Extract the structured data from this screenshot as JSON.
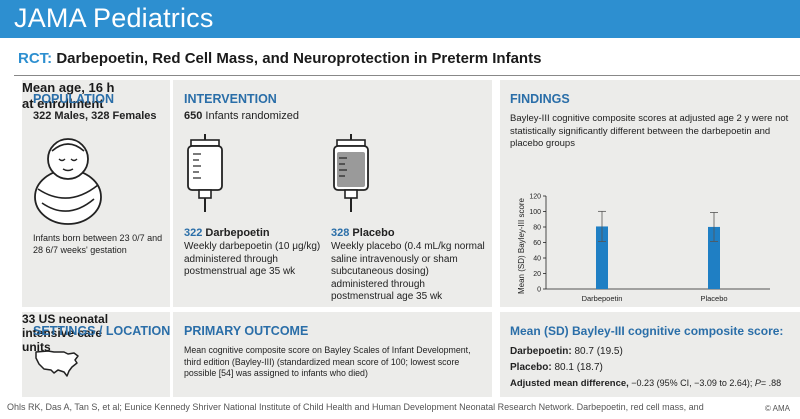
{
  "header": {
    "title": "JAMA Pediatrics"
  },
  "subtitle": {
    "prefix": "RCT:",
    "text": "Darbepoetin, Red Cell Mass, and Neuroprotection in Preterm Infants"
  },
  "population": {
    "title": "POPULATION",
    "summary": "322 Males, 328 Females",
    "detail": "Infants born between 23 0/7 and 28 6/7 weeks' gestation",
    "age_line1": "Mean age, 16 h",
    "age_line2": "at enrollment"
  },
  "intervention": {
    "title": "INTERVENTION",
    "count": "650",
    "count_label": "Infants randomized",
    "arm1": {
      "n": "322",
      "name": "Darbepoetin",
      "desc": "Weekly darbepoetin (10 μg/kg) administered through postmenstrual age 35 wk"
    },
    "arm2": {
      "n": "328",
      "name": "Placebo",
      "desc": "Weekly placebo (0.4 mL/kg normal saline intravenously or sham subcutaneous dosing) administered through postmenstrual age 35 wk"
    }
  },
  "findings": {
    "title": "FINDINGS",
    "text": "Bayley-III cognitive composite scores at adjusted age 2 y were not statistically significantly different between the darbepoetin and placebo groups"
  },
  "settings": {
    "title": "SETTINGS / LOCATIONS",
    "line1": "33 US neonatal",
    "line2": "intensive care",
    "line3": "units"
  },
  "primary_outcome": {
    "title": "PRIMARY OUTCOME",
    "text": "Mean cognitive composite score on Bayley Scales of Infant Development, third edition (Bayley-III) (standardized mean score of 100; lowest score possible [54] was assigned to infants who died)"
  },
  "results": {
    "title": "Mean (SD) Bayley-III cognitive composite score:",
    "darb_label": "Darbepoetin:",
    "darb_value": "80.7 (19.5)",
    "placebo_label": "Placebo:",
    "placebo_value": "80.1 (18.7)",
    "adj_label": "Adjusted mean difference,",
    "adj_value_pre": "−0.23 (95% CI, −3.09 to 2.64);",
    "adj_p_label": "P",
    "adj_p_value": "= .88"
  },
  "chart_data": {
    "type": "bar",
    "categories": [
      "Darbepoetin",
      "Placebo"
    ],
    "values": [
      80.7,
      80.1
    ],
    "errors": [
      19.5,
      18.7
    ],
    "ylabel": "Mean (SD) Bayley-III score",
    "xlabel": "",
    "ylim": [
      0,
      120
    ],
    "yticks": [
      0,
      20,
      40,
      60,
      80,
      100,
      120
    ],
    "bar_color": "#1f7fc4"
  },
  "footer": {
    "citation": "Ohls RK, Das A, Tan S, et al; Eunice Kennedy Shriver National Institute of Child Health and Human Development Neonatal Research Network. Darbepoetin, red cell mass, and",
    "copyright": "© AMA"
  }
}
